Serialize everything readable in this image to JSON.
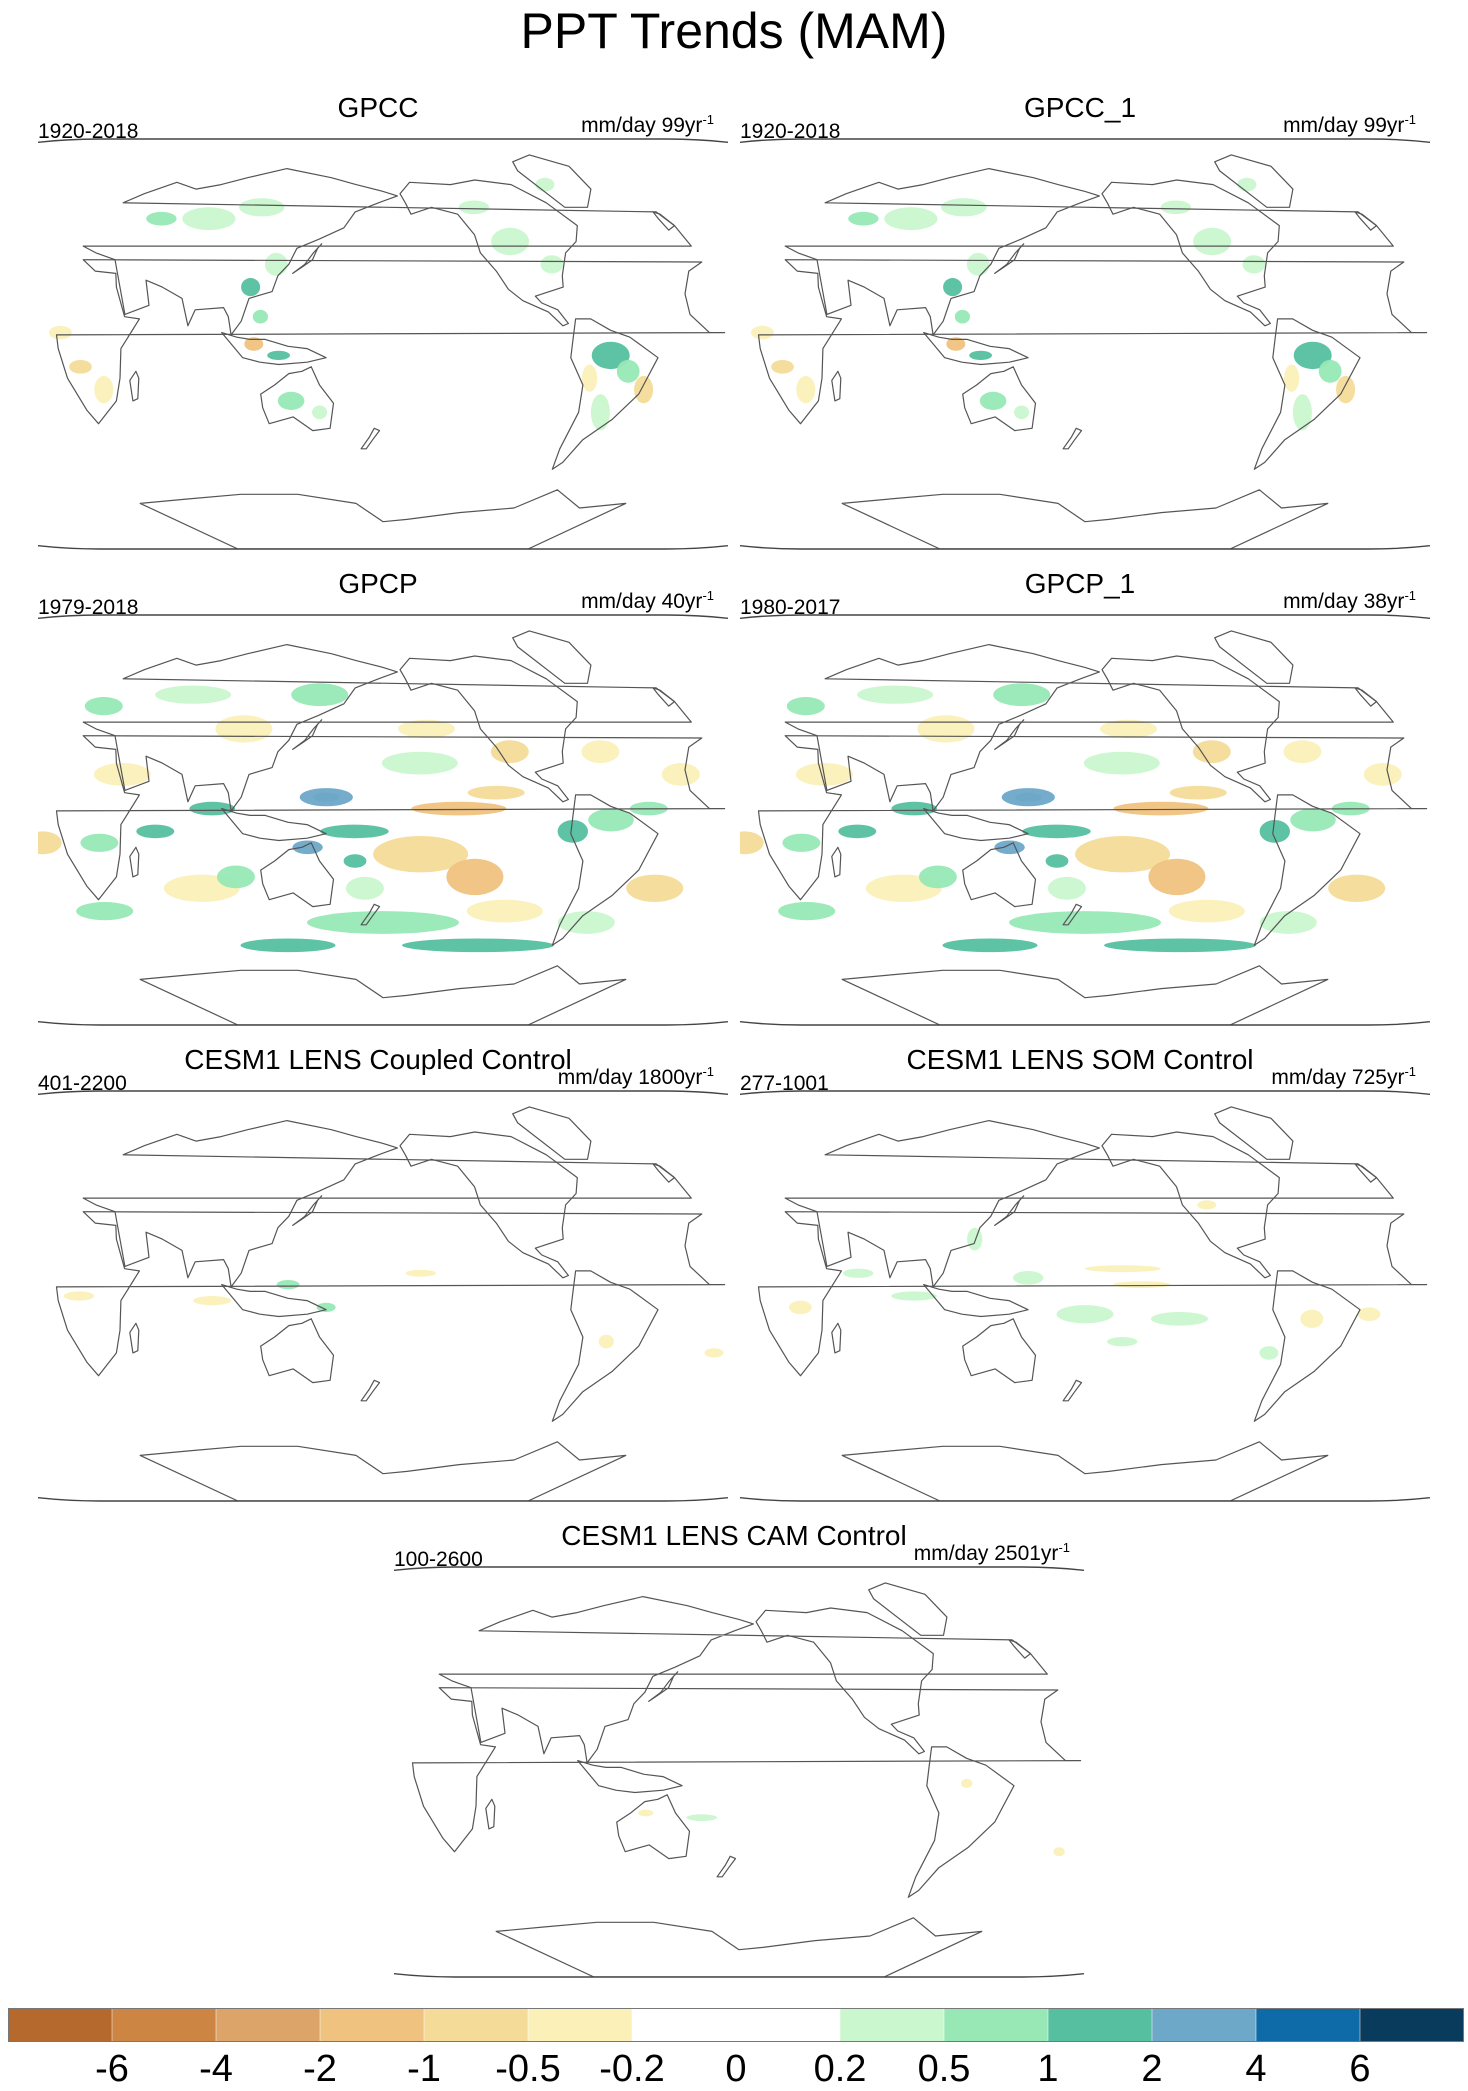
{
  "figure": {
    "title": "PPT Trends (MAM)"
  },
  "panels": [
    {
      "title": "GPCC",
      "period": "1920-2018",
      "units": "mm/day 99yr",
      "units_exp": "-1",
      "pattern": "land-sparse"
    },
    {
      "title": "GPCC_1",
      "period": "1920-2018",
      "units": "mm/day 99yr",
      "units_exp": "-1",
      "pattern": "land-sparse"
    },
    {
      "title": "GPCP",
      "period": "1979-2018",
      "units": "mm/day 40yr",
      "units_exp": "-1",
      "pattern": "global-strong"
    },
    {
      "title": "GPCP_1",
      "period": "1980-2017",
      "units": "mm/day 38yr",
      "units_exp": "-1",
      "pattern": "global-strong"
    },
    {
      "title": "CESM1 LENS Coupled Control",
      "period": "401-2200",
      "units": "mm/day 1800yr",
      "units_exp": "-1",
      "pattern": "weak"
    },
    {
      "title": "CESM1 LENS SOM Control",
      "period": "277-1001",
      "units": "mm/day 725yr",
      "units_exp": "-1",
      "pattern": "weak-plus"
    },
    {
      "title": "CESM1 LENS CAM Control",
      "period": "100-2600",
      "units": "mm/day 2501yr",
      "units_exp": "-1",
      "pattern": "very-weak"
    }
  ],
  "colorbar": {
    "colors": [
      "#b5692c",
      "#cc8543",
      "#dca468",
      "#efc27f",
      "#f4db98",
      "#fbf0b8",
      "#ffffff",
      "#ffffff",
      "#caf7cd",
      "#97e8b5",
      "#55bf9f",
      "#6ea8c8",
      "#0f6aa8",
      "#083b5c"
    ],
    "labels": [
      "-6",
      "-4",
      "-2",
      "-1",
      "-0.5",
      "-0.2",
      "0",
      "0.2",
      "0.5",
      "1",
      "2",
      "4",
      "6"
    ]
  }
}
